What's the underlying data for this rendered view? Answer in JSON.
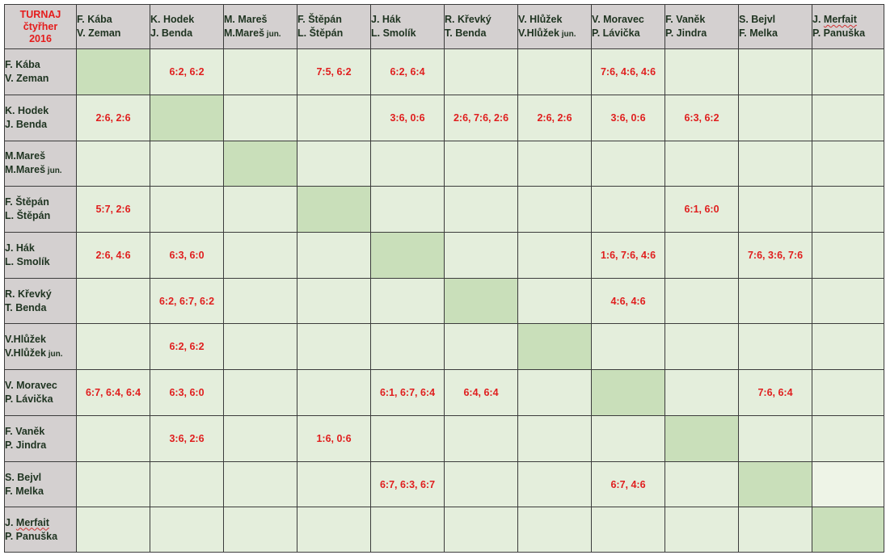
{
  "corner": [
    "TURNAJ",
    "čtyřher",
    "2016"
  ],
  "columns": [
    [
      "F. Kába",
      "V. Zeman"
    ],
    [
      "K. Hodek",
      "J. Benda"
    ],
    [
      "M. Mareš",
      "M.Mareš jun."
    ],
    [
      "F. Štěpán",
      "L. Štěpán"
    ],
    [
      "J. Hák",
      "L. Smolík"
    ],
    [
      "R. Křevký",
      "T. Benda"
    ],
    [
      "V. Hlůžek",
      "V.Hlůžek jun."
    ],
    [
      "V. Moravec",
      "P. Lávička"
    ],
    [
      "F. Vaněk",
      "P. Jindra"
    ],
    [
      "S. Bejvl",
      "F. Melka"
    ],
    [
      "J. Merfait",
      "P. Panuška"
    ]
  ],
  "rows": [
    {
      "name": [
        "F. Kába",
        "V. Zeman"
      ],
      "cells": [
        "",
        "6:2, 6:2",
        "",
        "7:5, 6:2",
        "6:2, 6:4",
        "",
        "",
        "7:6, 4:6, 4:6",
        "",
        "",
        ""
      ]
    },
    {
      "name": [
        "K. Hodek",
        "J. Benda"
      ],
      "cells": [
        "2:6, 2:6",
        "",
        "",
        "",
        "3:6, 0:6",
        "2:6, 7:6, 2:6",
        "2:6, 2:6",
        "3:6, 0:6",
        "6:3, 6:2",
        "",
        ""
      ]
    },
    {
      "name": [
        "M.Mareš",
        "M.Mareš jun."
      ],
      "cells": [
        "",
        "",
        "",
        "",
        "",
        "",
        "",
        "",
        "",
        "",
        ""
      ]
    },
    {
      "name": [
        "F. Štěpán",
        "L. Štěpán"
      ],
      "cells": [
        "5:7, 2:6",
        "",
        "",
        "",
        "",
        "",
        "",
        "",
        "6:1, 6:0",
        "",
        ""
      ]
    },
    {
      "name": [
        "J. Hák",
        "L. Smolík"
      ],
      "cells": [
        "2:6, 4:6",
        "6:3, 6:0",
        "",
        "",
        "",
        "",
        "",
        "1:6, 7:6, 4:6",
        "",
        "7:6, 3:6, 7:6",
        ""
      ]
    },
    {
      "name": [
        "R. Křevký",
        "T. Benda"
      ],
      "cells": [
        "",
        "6:2, 6:7, 6:2",
        "",
        "",
        "",
        "",
        "",
        "4:6, 4:6",
        "",
        "",
        ""
      ]
    },
    {
      "name": [
        "V.Hlůžek",
        "V.Hlůžek jun."
      ],
      "cells": [
        "",
        "6:2, 6:2",
        "",
        "",
        "",
        "",
        "",
        "",
        "",
        "",
        ""
      ]
    },
    {
      "name": [
        "V. Moravec",
        "P. Lávička"
      ],
      "cells": [
        "6:7, 6:4, 6:4",
        "6:3, 6:0",
        "",
        "",
        "6:1, 6:7, 6:4",
        "6:4, 6:4",
        "",
        "",
        "",
        "7:6, 6:4",
        ""
      ]
    },
    {
      "name": [
        "F. Vaněk",
        "P. Jindra"
      ],
      "cells": [
        "",
        "3:6, 2:6",
        "",
        "1:6, 0:6",
        "",
        "",
        "",
        "",
        "",
        "",
        ""
      ]
    },
    {
      "name": [
        "S. Bejvl",
        "F. Melka"
      ],
      "cells": [
        "",
        "",
        "",
        "",
        "6:7, 6:3, 6:7",
        "",
        "",
        "6:7, 4:6",
        "",
        "",
        ""
      ]
    },
    {
      "name": [
        "J. Merfait",
        "P. Panuška"
      ],
      "cells": [
        "",
        "",
        "",
        "",
        "",
        "",
        "",
        "",
        "",
        "",
        ""
      ]
    }
  ],
  "colors": {
    "header_bg": "#d4d0d0",
    "cell_bg": "#e4eedc",
    "diagonal_bg": "#c9dfba",
    "score_text": "#e01e1e",
    "name_text": "#1e3320",
    "title_text": "#e51c1c"
  }
}
